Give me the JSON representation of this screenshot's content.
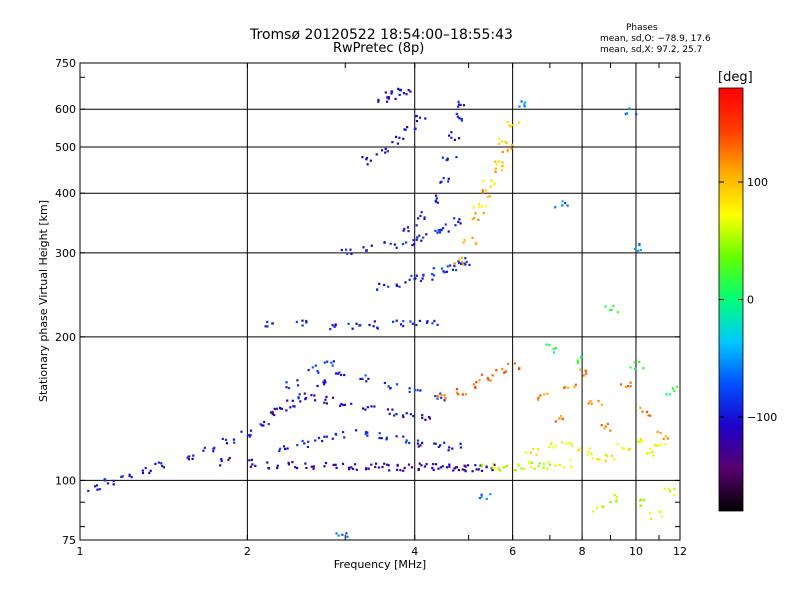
{
  "chart_data": {
    "type": "scatter",
    "title": "Tromsø 20120522 18:54:00–18:55:43",
    "subtitle": "RwPretec (8p)",
    "xlabel": "Frequency [MHz]",
    "ylabel": "Stationary phase Virtual Height [km]",
    "x_scale": "log",
    "y_scale": "log",
    "xlim": [
      1,
      12
    ],
    "ylim": [
      75,
      750
    ],
    "grid": true,
    "x_ticks": [
      "1",
      "2",
      "4",
      "6",
      "8",
      "10",
      "12"
    ],
    "x_tick_values": [
      1,
      2,
      4,
      6,
      8,
      10,
      12
    ],
    "y_ticks": [
      "75",
      "100",
      "200",
      "300",
      "400",
      "500",
      "600",
      "750"
    ],
    "y_tick_values": [
      75,
      100,
      200,
      300,
      400,
      500,
      600,
      750
    ],
    "stats": {
      "heading": "Phases",
      "line1": "mean, sd,O: −78.9, 17.6",
      "line2": "mean, sd,X:  97.2, 25.7"
    },
    "colorbar": {
      "unit": "[deg]",
      "range": [
        -180,
        180
      ],
      "ticks": [
        "100",
        "0",
        "−100"
      ],
      "tick_values": [
        100,
        0,
        -100
      ],
      "colors": [
        "#000000",
        "#5a006e",
        "#1e00c8",
        "#0050ff",
        "#00c8ff",
        "#00ff78",
        "#64ff00",
        "#ffff00",
        "#ffaa00",
        "#ff3c00",
        "#ff0000"
      ]
    },
    "series": [
      {
        "x": [
          1.05,
          1.12,
          1.2,
          1.3,
          1.4,
          1.55,
          1.7,
          1.85,
          2.0,
          2.15,
          2.3,
          2.5,
          2.7,
          2.9
        ],
        "y": [
          97,
          100,
          102,
          105,
          108,
          112,
          118,
          122,
          126,
          132,
          140,
          150,
          160,
          168
        ],
        "phase": -100
      },
      {
        "x": [
          1.8,
          2.0,
          2.2,
          2.4,
          2.6,
          2.8,
          3.0,
          3.2,
          3.4,
          3.6,
          3.8,
          4.0,
          4.2,
          4.4,
          4.6,
          4.8,
          5.0,
          5.2,
          5.4
        ],
        "y": [
          110,
          109,
          108,
          108,
          108,
          108,
          107,
          107,
          107,
          107,
          107,
          107,
          107,
          107,
          107,
          107,
          107,
          107,
          107
        ],
        "phase": -120
      },
      {
        "x": [
          5.4,
          5.7,
          6.0,
          6.3,
          6.6,
          7.0,
          7.4
        ],
        "y": [
          107,
          107,
          107,
          108,
          108,
          108,
          109
        ],
        "phase": 55
      },
      {
        "x": [
          2.3,
          2.5,
          2.7,
          2.9,
          3.2,
          3.5,
          3.8,
          4.1,
          4.4,
          4.7
        ],
        "y": [
          118,
          120,
          122,
          125,
          126,
          124,
          122,
          120,
          119,
          118
        ],
        "phase": -95
      },
      {
        "x": [
          2.2,
          2.4,
          2.6,
          2.8,
          3.0,
          3.3,
          3.6,
          3.9,
          4.2
        ],
        "y": [
          140,
          145,
          150,
          148,
          145,
          142,
          140,
          138,
          136
        ],
        "phase": -110
      },
      {
        "x": [
          2.4,
          2.6,
          2.8,
          3.2,
          3.6,
          4.0,
          4.4
        ],
        "y": [
          160,
          172,
          178,
          165,
          158,
          155,
          150
        ],
        "phase": -85
      },
      {
        "x": [
          2.2,
          2.5,
          2.8,
          3.1,
          3.4,
          3.7,
          4.0,
          4.3
        ],
        "y": [
          215,
          215,
          212,
          212,
          213,
          215,
          216,
          216
        ],
        "phase": -90
      },
      {
        "x": [
          3.0,
          3.3,
          3.6,
          3.9,
          4.1,
          4.3,
          4.5,
          4.7
        ],
        "y": [
          305,
          310,
          312,
          316,
          322,
          330,
          340,
          350
        ],
        "phase": -95
      },
      {
        "x": [
          3.5,
          3.8,
          4.0,
          4.2,
          4.4,
          4.6,
          4.8,
          5.0
        ],
        "y": [
          255,
          260,
          265,
          270,
          275,
          280,
          285,
          290
        ],
        "phase": -90
      },
      {
        "x": [
          3.9,
          4.1,
          4.3,
          4.5,
          4.6,
          4.7,
          4.75,
          4.8
        ],
        "y": [
          340,
          360,
          390,
          430,
          480,
          530,
          580,
          620
        ],
        "phase": -100
      },
      {
        "x": [
          3.3,
          3.5,
          3.7,
          3.9,
          4.1
        ],
        "y": [
          470,
          490,
          520,
          545,
          575
        ],
        "phase": -110
      },
      {
        "x": [
          3.5,
          3.6,
          3.7,
          3.8
        ],
        "y": [
          635,
          645,
          650,
          660
        ],
        "phase": -110
      },
      {
        "x": [
          4.8,
          5.0,
          5.2,
          5.4,
          5.6,
          5.8
        ],
        "y": [
          290,
          320,
          360,
          400,
          450,
          500
        ],
        "phase": 110
      },
      {
        "x": [
          5.2,
          5.4,
          5.6,
          5.8,
          6.0
        ],
        "y": [
          380,
          420,
          460,
          520,
          560
        ],
        "phase": 85
      },
      {
        "x": [
          4.5,
          4.8,
          5.1,
          5.4,
          5.7,
          6.0
        ],
        "y": [
          150,
          155,
          160,
          165,
          170,
          175
        ],
        "phase": 130
      },
      {
        "x": [
          6.5,
          7.0,
          7.5,
          8.0,
          8.5,
          9.0,
          9.5,
          10.0,
          10.5,
          11.0
        ],
        "y": [
          115,
          118,
          120,
          116,
          113,
          112,
          118,
          122,
          115,
          118
        ],
        "phase": 75
      },
      {
        "x": [
          6.8,
          7.2,
          7.6,
          8.0,
          8.4,
          8.8,
          9.6,
          10.4,
          11.2
        ],
        "y": [
          150,
          135,
          160,
          170,
          145,
          130,
          160,
          140,
          125
        ],
        "phase": 120
      },
      {
        "x": [
          7.0,
          8.0,
          9.0,
          10.0,
          11.5
        ],
        "y": [
          190,
          180,
          230,
          175,
          155
        ],
        "phase": 10
      },
      {
        "x": [
          8.5,
          9.2,
          10.0,
          10.8,
          11.5
        ],
        "y": [
          88,
          92,
          90,
          85,
          95
        ],
        "phase": 60
      },
      {
        "x": [
          6.2,
          7.3,
          9.8,
          10.2,
          2.95,
          5.3
        ],
        "y": [
          620,
          380,
          600,
          310,
          78,
          93
        ],
        "phase": -60
      }
    ]
  }
}
